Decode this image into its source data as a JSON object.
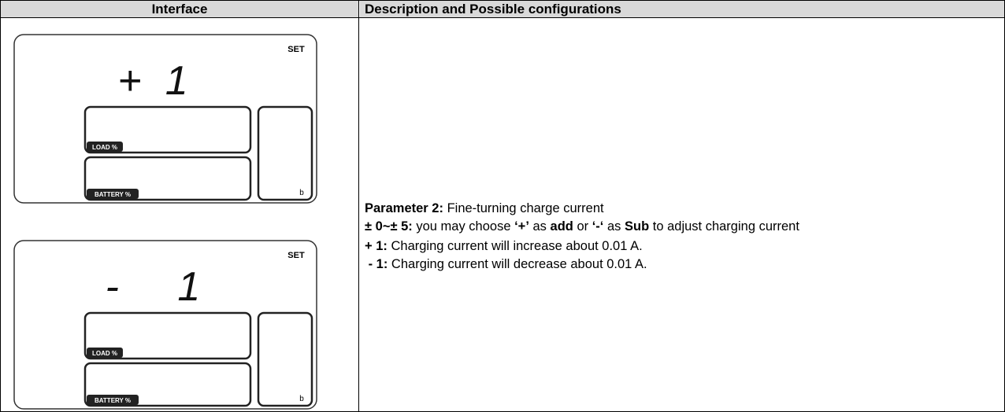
{
  "table": {
    "header": [
      "Interface",
      "Description and Possible configurations"
    ],
    "displays": [
      {
        "indicator": "SET",
        "digits": "+1",
        "load_label": "LOAD %",
        "battery_label": "BATTERY %",
        "corner": "b"
      },
      {
        "indicator": "SET",
        "digits": "- 1",
        "load_label": "LOAD %",
        "battery_label": "BATTERY %",
        "corner": "b"
      }
    ],
    "description": [
      [
        {
          "bold": true,
          "text": "Parameter 2:"
        },
        {
          "bold": false,
          "text": " Fine-turning charge current"
        }
      ],
      [
        {
          "bold": true,
          "text": "± 0~± 5:"
        },
        {
          "bold": false,
          "text": " you may choose "
        },
        {
          "bold": true,
          "text": "‘+’"
        },
        {
          "bold": false,
          "text": " as "
        },
        {
          "bold": true,
          "text": "add"
        },
        {
          "bold": false,
          "text": " or "
        },
        {
          "bold": true,
          "text": "‘-‘"
        },
        {
          "bold": false,
          "text": " as "
        },
        {
          "bold": true,
          "text": "Sub"
        },
        {
          "bold": false,
          "text": " to adjust charging current"
        }
      ],
      [
        {
          "bold": true,
          "text": "+ 1:"
        },
        {
          "bold": false,
          "text": " Charging current will increase about 0.01 A."
        }
      ],
      [
        {
          "bold": true,
          "text": " - 1:"
        },
        {
          "bold": false,
          "text": " Charging current will decrease about 0.01 A."
        }
      ]
    ]
  }
}
